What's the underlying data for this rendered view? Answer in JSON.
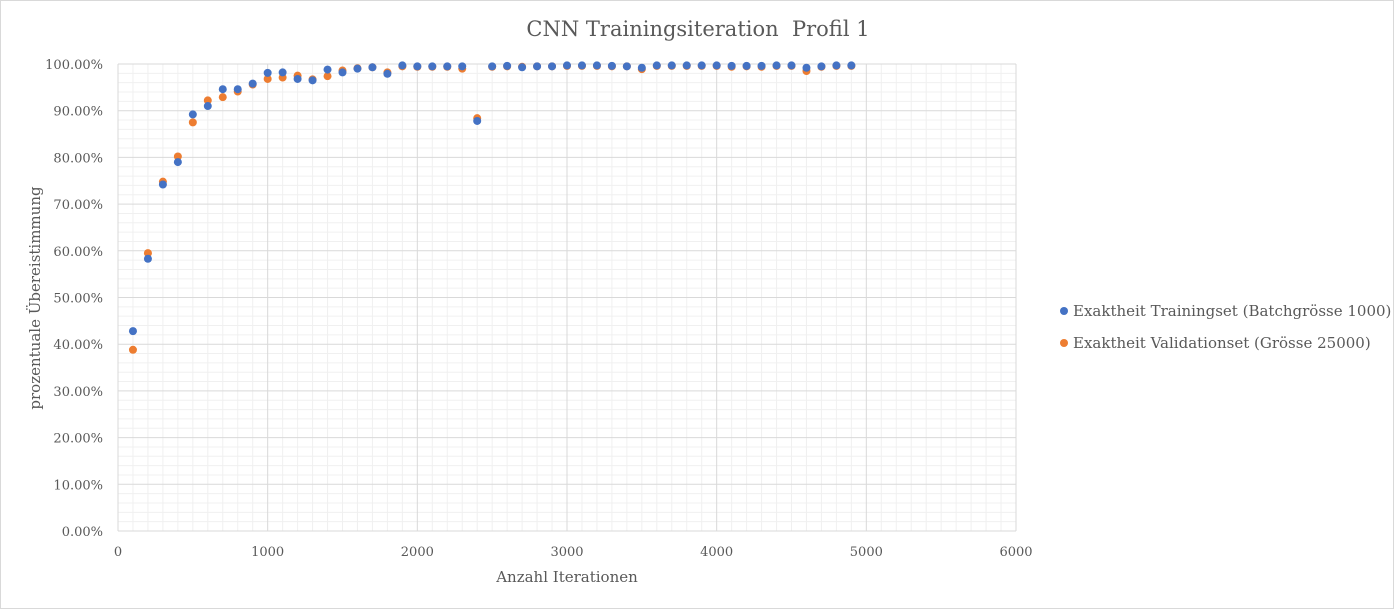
{
  "chart_data": {
    "type": "scatter",
    "title": "CNN Trainingsiteration  Profil 1",
    "xlabel": "Anzahl Iterationen",
    "ylabel": "prozentuale Übereistimmung",
    "xlim": [
      0,
      6000
    ],
    "ylim": [
      0,
      1
    ],
    "x_ticks": [
      0,
      1000,
      2000,
      3000,
      4000,
      5000,
      6000
    ],
    "x_tick_labels": [
      "0",
      "1000",
      "2000",
      "3000",
      "4000",
      "5000",
      "6000"
    ],
    "y_ticks": [
      0,
      0.1,
      0.2,
      0.3,
      0.4,
      0.5,
      0.6,
      0.7,
      0.8,
      0.9,
      1.0
    ],
    "y_tick_labels": [
      "0.00%",
      "10.00%",
      "20.00%",
      "30.00%",
      "40.00%",
      "50.00%",
      "60.00%",
      "70.00%",
      "80.00%",
      "90.00%",
      "100.00%"
    ],
    "grid": true,
    "legend_position": "right",
    "x": [
      100,
      200,
      300,
      400,
      500,
      600,
      700,
      800,
      900,
      1000,
      1100,
      1200,
      1300,
      1400,
      1500,
      1600,
      1700,
      1800,
      1900,
      2000,
      2100,
      2200,
      2300,
      2400,
      2500,
      2600,
      2700,
      2800,
      2900,
      3000,
      3100,
      3200,
      3300,
      3400,
      3500,
      3600,
      3700,
      3800,
      3900,
      4000,
      4100,
      4200,
      4300,
      4400,
      4500,
      4600,
      4700,
      4800,
      4900
    ],
    "series": [
      {
        "name": "Exaktheit Validationset (Grösse 25000)",
        "color": "#ED7D31",
        "values": [
          0.388,
          0.595,
          0.748,
          0.802,
          0.875,
          0.922,
          0.929,
          0.941,
          0.956,
          0.968,
          0.971,
          0.975,
          0.967,
          0.974,
          0.986,
          0.991,
          0.993,
          0.982,
          0.995,
          0.994,
          0.994,
          0.994,
          0.99,
          0.884,
          0.994,
          0.995,
          0.994,
          0.995,
          0.995,
          0.996,
          0.996,
          0.996,
          0.995,
          0.995,
          0.989,
          0.996,
          0.996,
          0.996,
          0.996,
          0.996,
          0.994,
          0.995,
          0.994,
          0.996,
          0.996,
          0.985,
          0.994,
          0.996,
          0.996
        ]
      },
      {
        "name": "Exaktheit Trainingset (Batchgrösse 1000)",
        "color": "#4472C4",
        "values": [
          0.428,
          0.583,
          0.742,
          0.79,
          0.892,
          0.91,
          0.946,
          0.946,
          0.958,
          0.981,
          0.982,
          0.968,
          0.965,
          0.988,
          0.982,
          0.99,
          0.993,
          0.979,
          0.997,
          0.995,
          0.995,
          0.995,
          0.995,
          0.878,
          0.995,
          0.996,
          0.993,
          0.995,
          0.995,
          0.997,
          0.997,
          0.997,
          0.996,
          0.995,
          0.992,
          0.997,
          0.997,
          0.997,
          0.997,
          0.997,
          0.996,
          0.996,
          0.996,
          0.997,
          0.997,
          0.992,
          0.995,
          0.997,
          0.997
        ]
      }
    ],
    "legend_order": [
      1,
      0
    ]
  }
}
